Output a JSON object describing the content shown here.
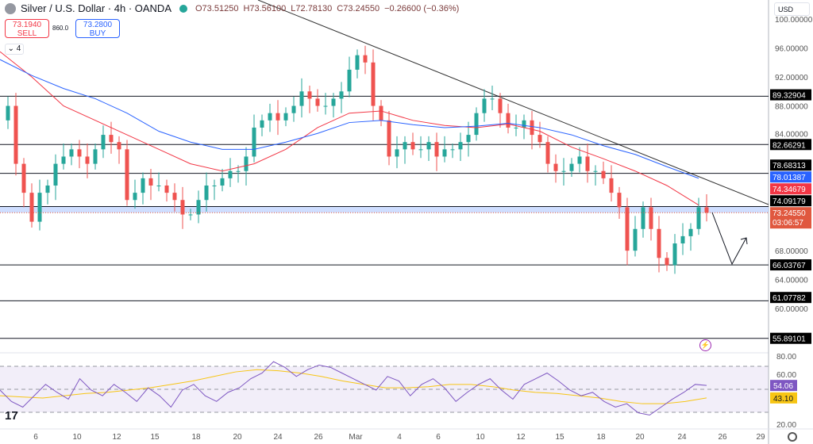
{
  "header": {
    "symbol": "Silver / U.S. Dollar · 4h · OANDA",
    "open": "O73.51250",
    "high": "H73.56100",
    "low": "L72.78130",
    "close": "C73.24550",
    "change": "−0.26600 (−0.36%)"
  },
  "trade": {
    "sell_price": "73.1940",
    "sell_label": "SELL",
    "spread": "860.0",
    "buy_price": "73.2800",
    "buy_label": "BUY",
    "collapse": "4"
  },
  "currency": "USD",
  "colors": {
    "up": "#26a69a",
    "down": "#ef5350",
    "ma_fast": "#f23645",
    "ma_slow": "#2962ff",
    "rsi": "#7e57c2",
    "rsi_ma": "#f7c514"
  },
  "chart_data": {
    "type": "candlestick",
    "price_ticks": [
      "100.00000",
      "96.00000",
      "92.00000",
      "88.00000",
      "84.00000",
      "68.00000",
      "64.00000",
      "60.00000"
    ],
    "price_tick_values": [
      100,
      96,
      92,
      88,
      84,
      68,
      64,
      60
    ],
    "ylim": [
      56,
      101.5
    ],
    "levels": [
      {
        "label": "89.32904",
        "value": 89.32904
      },
      {
        "label": "82.66291",
        "value": 82.66291
      },
      {
        "label": "78.68313",
        "value": 78.68313
      },
      {
        "label": "74.09179",
        "value": 74.09179
      },
      {
        "label": "66.03767",
        "value": 66.03767
      },
      {
        "label": "61.07782",
        "value": 61.07782
      },
      {
        "label": "55.89101",
        "value": 55.89101
      }
    ],
    "ma_fast_label": "74.34679",
    "ma_slow_label": "78.01387",
    "last_price": "73.24550",
    "countdown": "03:06:57",
    "closes": [
      86,
      88,
      80,
      76,
      72,
      76,
      77,
      80,
      81,
      82,
      81,
      80,
      82,
      84,
      83,
      82,
      75,
      76,
      78,
      77,
      77,
      76,
      75,
      73,
      73,
      75,
      77,
      77,
      78,
      79,
      79,
      81,
      85,
      86,
      87,
      86,
      87,
      88,
      90,
      89,
      88,
      88,
      89,
      90,
      93,
      95,
      94,
      88,
      86,
      81,
      82,
      83,
      82,
      82,
      83,
      81,
      82,
      82,
      83,
      84,
      87,
      89,
      89,
      87,
      85,
      85,
      86,
      84,
      83,
      80,
      79,
      79,
      80,
      81,
      79,
      79,
      78,
      76,
      74,
      68,
      71,
      74,
      71,
      67,
      66,
      69,
      70,
      71,
      74,
      73.2455
    ],
    "ma_fast": [
      95.5,
      92,
      88,
      86,
      84,
      82,
      80,
      79,
      80,
      82,
      85,
      87,
      87.3,
      86,
      85.3,
      85,
      85.5,
      84.5,
      82.3,
      80.7,
      79,
      77,
      74.3
    ],
    "ma_slow": [
      94.4,
      92.2,
      90.4,
      89,
      87,
      84.5,
      83,
      82,
      82,
      83,
      84.2,
      85.7,
      86,
      85.4,
      85,
      85.2,
      85.6,
      85,
      84,
      82.5,
      81.3,
      79.6,
      78
    ],
    "rsi_ticks": [
      "80.00",
      "60.00",
      "20.00"
    ],
    "rsi_tick_values": [
      80,
      60,
      20
    ],
    "rsi_value": "54.06",
    "rsi_ma_value": "43.10",
    "rsi": [
      50,
      40,
      35,
      45,
      55,
      48,
      42,
      60,
      50,
      45,
      55,
      48,
      40,
      52,
      45,
      35,
      50,
      55,
      45,
      40,
      48,
      52,
      60,
      65,
      75,
      70,
      62,
      68,
      72,
      70,
      65,
      60,
      55,
      50,
      62,
      58,
      45,
      55,
      60,
      52,
      40,
      48,
      55,
      60,
      50,
      42,
      55,
      60,
      65,
      58,
      50,
      45,
      48,
      40,
      35,
      38,
      30,
      28,
      35,
      42,
      48,
      55,
      54.06
    ],
    "rsi_ma": [
      45,
      44,
      43,
      45,
      47,
      48,
      50,
      52,
      55,
      58,
      62,
      66,
      68,
      67,
      65,
      62,
      58,
      55,
      52,
      52,
      53,
      55,
      55,
      53,
      50,
      48,
      47,
      45,
      43,
      40,
      38,
      38,
      40,
      43.1
    ],
    "x_ticks": [
      "6",
      "10",
      "12",
      "15",
      "18",
      "20",
      "24",
      "26",
      "Mar",
      "4",
      "6",
      "10",
      "12",
      "15",
      "18",
      "20",
      "24",
      "26",
      "29"
    ]
  }
}
